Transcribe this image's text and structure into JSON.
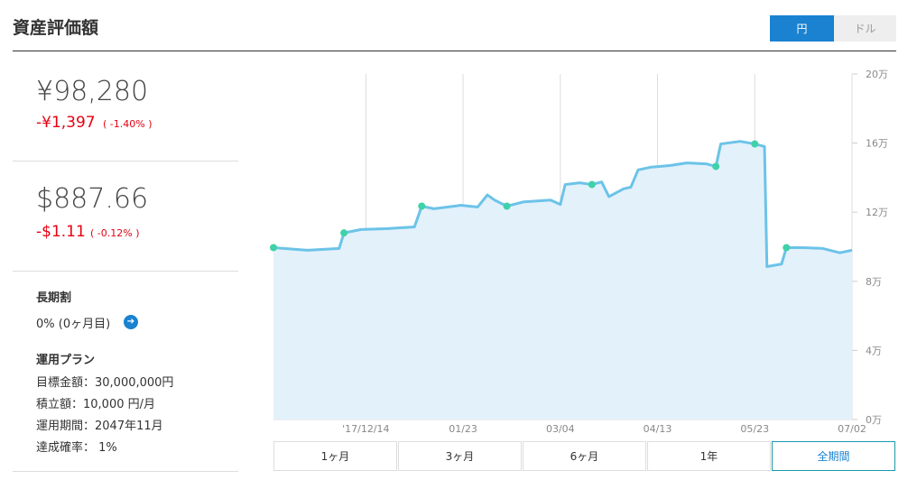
{
  "header": {
    "title": "資産評価額",
    "toggle": [
      "円",
      "ドル"
    ]
  },
  "summary": {
    "yen": {
      "value": "¥98,280",
      "change": "-¥1,397",
      "percent": "( -1.40% )"
    },
    "usd": {
      "value": "$887.66",
      "change": "-$1.11",
      "percent": "( -0.12% )"
    }
  },
  "discount": {
    "title": "長期割",
    "text": "0% (0ヶ月目)"
  },
  "plan": {
    "title": "運用プラン",
    "items": [
      "目標金額：30,000,000円",
      "積立額：10,000 円/月",
      "運用期間：2047年11月",
      "達成確率： 1%"
    ]
  },
  "ranges": [
    "1ヶ月",
    "3ヶ月",
    "6ヶ月",
    "1年",
    "全期間"
  ],
  "chart_data": {
    "type": "line",
    "x": [
      0,
      14,
      27,
      29,
      36,
      47,
      58,
      61,
      66,
      77,
      84,
      88,
      91,
      96,
      103,
      114,
      118,
      120,
      126,
      131,
      135,
      138,
      144,
      147,
      150,
      155,
      163,
      170,
      178,
      182,
      184,
      192,
      198,
      202,
      203,
      209,
      211,
      218,
      226,
      233,
      238
    ],
    "series": [
      {
        "color": "#6cc3e8",
        "values": [
          9.95,
          9.8,
          9.9,
          10.8,
          11.0,
          11.05,
          11.15,
          12.35,
          12.2,
          12.4,
          12.3,
          13.0,
          12.7,
          12.35,
          12.6,
          12.7,
          12.45,
          13.6,
          13.7,
          13.6,
          13.75,
          12.9,
          13.35,
          13.45,
          14.45,
          14.6,
          14.7,
          14.85,
          14.8,
          14.65,
          15.95,
          16.1,
          15.95,
          15.8,
          8.85,
          9.0,
          9.95,
          9.95,
          9.9,
          9.65,
          9.8
        ]
      }
    ],
    "markers": {
      "color": "#3fd1a8",
      "x": [
        0,
        29,
        61,
        96,
        131,
        182,
        198,
        211
      ],
      "values": [
        9.95,
        10.8,
        12.35,
        12.35,
        13.6,
        14.65,
        15.95,
        9.95
      ]
    },
    "xlim": [
      0,
      238
    ],
    "xticks": [
      {
        "value": 38,
        "label": "'17/12/14"
      },
      {
        "value": 78,
        "label": "01/23"
      },
      {
        "value": 118,
        "label": "03/04"
      },
      {
        "value": 158,
        "label": "04/13"
      },
      {
        "value": 198,
        "label": "05/23"
      },
      {
        "value": 238,
        "label": "07/02"
      }
    ],
    "ylim": [
      0,
      20
    ],
    "yticks": [
      {
        "value": 0,
        "label": "0万"
      },
      {
        "value": 4,
        "label": "4万"
      },
      {
        "value": 8,
        "label": "8万"
      },
      {
        "value": 12,
        "label": "12万"
      },
      {
        "value": 16,
        "label": "16万"
      },
      {
        "value": 20,
        "label": "20万"
      }
    ],
    "grid": true
  }
}
